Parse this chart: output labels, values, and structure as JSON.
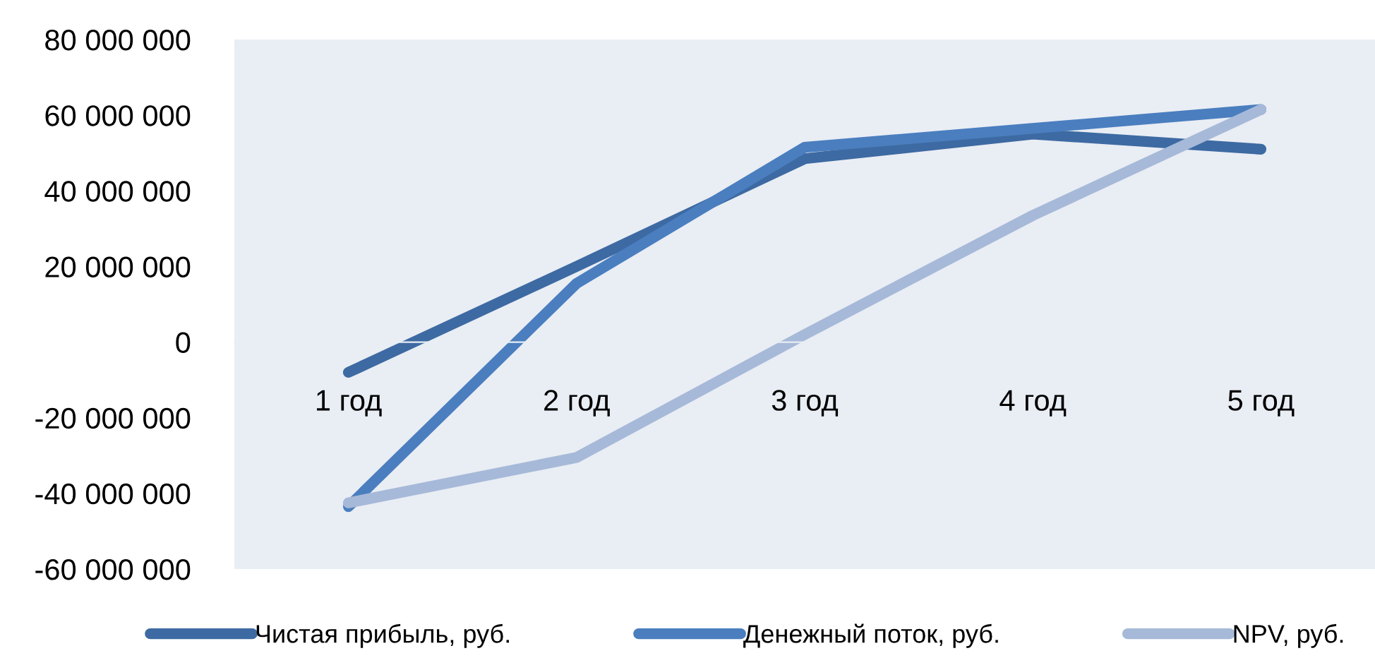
{
  "chart_data": {
    "type": "line",
    "categories": [
      "1 год",
      "2 год",
      "3 год",
      "4 год",
      "5 год"
    ],
    "series": [
      {
        "name": "Чистая прибыль, руб.",
        "color": "#3d6aa2",
        "values": [
          -8000000,
          20000000,
          48500000,
          55000000,
          51000000
        ]
      },
      {
        "name": "Денежный поток, руб.",
        "color": "#4a7ebf",
        "values": [
          -43500000,
          15500000,
          51500000,
          56500000,
          61500000
        ]
      },
      {
        "name": "NPV, руб.",
        "color": "#a6b9d8",
        "values": [
          -42500000,
          -30500000,
          2000000,
          33500000,
          61500000
        ]
      }
    ],
    "ylim": [
      -60000000,
      80000000
    ],
    "yticks": [
      {
        "value": -60000000,
        "label": "-60 000 000"
      },
      {
        "value": -40000000,
        "label": "-40 000 000"
      },
      {
        "value": -20000000,
        "label": "-20 000 000"
      },
      {
        "value": 0,
        "label": "0"
      },
      {
        "value": 20000000,
        "label": "20 000 000"
      },
      {
        "value": 40000000,
        "label": "40 000 000"
      },
      {
        "value": 60000000,
        "label": "60 000 000"
      },
      {
        "value": 80000000,
        "label": "80 000 000"
      }
    ],
    "grid": false,
    "legend": "bottom",
    "marker": "none",
    "line_style": "solid"
  }
}
